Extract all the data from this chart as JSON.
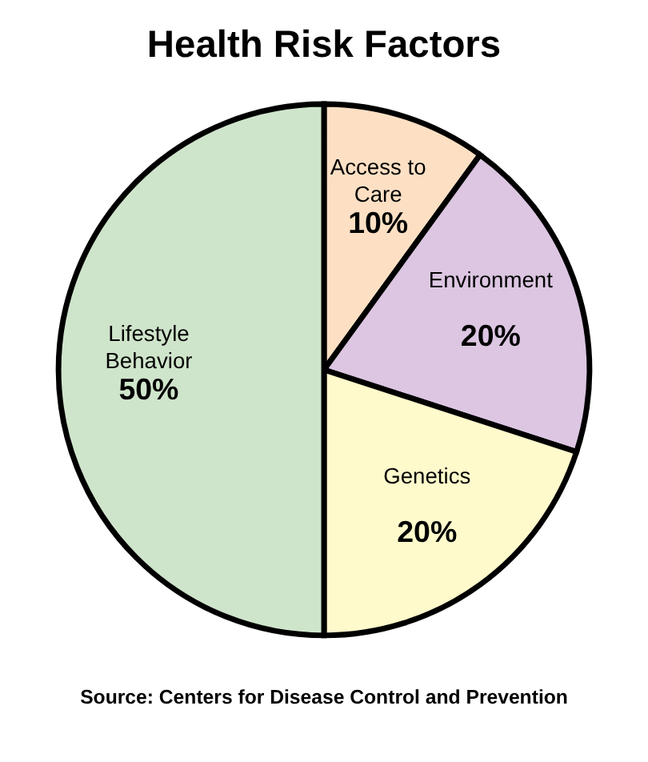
{
  "chart_data": {
    "type": "pie",
    "title": "Health Risk Factors",
    "categories": [
      "Access to Care",
      "Environment",
      "Genetics",
      "Lifestyle Behavior"
    ],
    "values": [
      10,
      20,
      20,
      50
    ],
    "colors": [
      "#fde0c4",
      "#dcc6e2",
      "#fffacc",
      "#cfe5cb"
    ],
    "data_labels": true,
    "value_labels": [
      "10%",
      "20%",
      "20%",
      "50%"
    ],
    "legend": false,
    "annotations": [
      "Source:  Centers for Disease Control and Prevention"
    ]
  }
}
